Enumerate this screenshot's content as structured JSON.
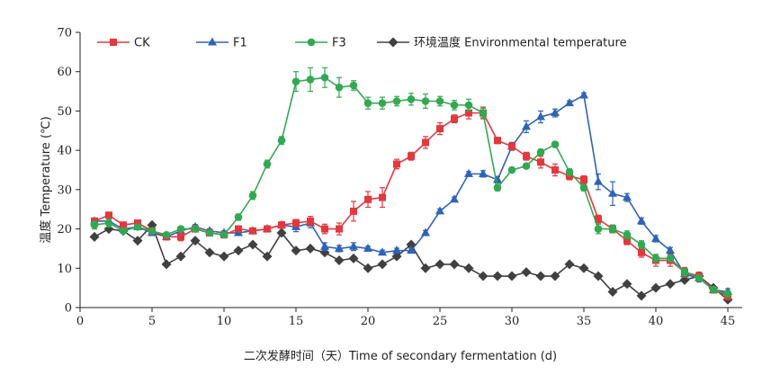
{
  "chart_data": {
    "type": "line",
    "xlabel": "二次发酵时间（天）Time of secondary fermentation (d)",
    "ylabel": "温度 Temperature (℃)",
    "xlim": [
      0,
      46
    ],
    "ylim": [
      0,
      70
    ],
    "xticks": [
      0,
      5,
      10,
      15,
      20,
      25,
      30,
      35,
      40,
      45
    ],
    "yticks": [
      0,
      10,
      20,
      30,
      40,
      50,
      60,
      70
    ],
    "grid": false,
    "legend_position": "top",
    "x": [
      1,
      2,
      3,
      4,
      5,
      6,
      7,
      8,
      9,
      10,
      11,
      12,
      13,
      14,
      15,
      16,
      17,
      18,
      19,
      20,
      21,
      22,
      23,
      24,
      25,
      26,
      27,
      28,
      29,
      30,
      31,
      32,
      33,
      34,
      35,
      36,
      37,
      38,
      39,
      40,
      41,
      42,
      43,
      44,
      45
    ],
    "series": [
      {
        "name": "CK",
        "color": "#e2383f",
        "marker": "square",
        "values": [
          22,
          23.5,
          21,
          21.5,
          19.5,
          18,
          18,
          20,
          19,
          18.5,
          20,
          19.5,
          20,
          21,
          21.5,
          22,
          20,
          20,
          24.5,
          27.5,
          28,
          36.5,
          38.5,
          42,
          45.5,
          48,
          49.5,
          49.5,
          42.5,
          41,
          38.5,
          37,
          35,
          33.5,
          32.5,
          22.5,
          20,
          17,
          14,
          12,
          12,
          9,
          8,
          4.5,
          3
        ],
        "errors": [
          0.5,
          0.6,
          0.5,
          0.6,
          0.5,
          0.8,
          1,
          0.6,
          0.6,
          0.5,
          0.6,
          0.7,
          0.6,
          0.8,
          0.9,
          1.2,
          1.2,
          1.5,
          2.5,
          2,
          2.5,
          1.2,
          1,
          1.5,
          1.5,
          1,
          1.5,
          1.5,
          0.8,
          0.8,
          1,
          1.5,
          1.5,
          1,
          1,
          1,
          1,
          1,
          1.2,
          1.5,
          1.5,
          1.2,
          1,
          0.8,
          1
        ]
      },
      {
        "name": "F1",
        "color": "#2e63b5",
        "marker": "triangle",
        "values": [
          22,
          22,
          20,
          20.5,
          19,
          18,
          19.5,
          20.5,
          19.5,
          19,
          19,
          19.5,
          20,
          21,
          20.5,
          21.5,
          15.5,
          15,
          15.5,
          15,
          14,
          14.5,
          14.5,
          19,
          24.5,
          27.5,
          34,
          34,
          32.5,
          41,
          46,
          48.5,
          49.5,
          52,
          54,
          32,
          29,
          28,
          22,
          17.5,
          14.5,
          8.5,
          7.5,
          4.5,
          4
        ],
        "errors": [
          0.5,
          0.5,
          0.5,
          0.5,
          0.5,
          0.5,
          0.6,
          0.6,
          0.5,
          0.5,
          0.5,
          0.5,
          0.6,
          0.6,
          1.2,
          1.2,
          1,
          0.8,
          1,
          0.6,
          0.6,
          0.6,
          0.6,
          0.6,
          0.6,
          0.6,
          0.6,
          0.8,
          0.8,
          1,
          1.5,
          1.5,
          1,
          0.6,
          0.6,
          2,
          3,
          1,
          0.8,
          0.8,
          0.8,
          0.8,
          1,
          0.8,
          0.8
        ]
      },
      {
        "name": "F3",
        "color": "#33a852",
        "marker": "circle",
        "values": [
          21,
          21.5,
          19.5,
          20.5,
          19.5,
          18.5,
          20,
          20,
          19,
          18.5,
          23,
          28.5,
          36.5,
          42.5,
          57.5,
          58,
          58.5,
          56,
          56.5,
          52,
          52,
          52.5,
          53,
          52.5,
          52.5,
          51.5,
          51.5,
          49.5,
          30.5,
          35,
          36,
          39.5,
          41.5,
          34.5,
          30.5,
          20,
          20,
          18.5,
          16,
          12.5,
          12.5,
          9,
          7.5,
          4.5,
          3.5
        ],
        "errors": [
          1,
          1,
          0.6,
          0.6,
          0.6,
          0.6,
          0.6,
          0.6,
          0.6,
          0.6,
          0.8,
          1,
          1,
          1,
          2.5,
          3,
          2.5,
          2.5,
          1.2,
          1.5,
          1.5,
          1.2,
          1.5,
          1.8,
          1.2,
          1.2,
          1.5,
          1.2,
          0.8,
          0.6,
          0.6,
          0.8,
          0.6,
          0.8,
          0.8,
          1.2,
          1,
          1,
          1,
          1,
          0.8,
          1,
          0.8,
          0.8,
          0.8
        ]
      },
      {
        "name": "环境温度 Environmental temperature",
        "color": "#404040",
        "marker": "diamond",
        "values": [
          18,
          20,
          19.5,
          17,
          21,
          11,
          13,
          17,
          14,
          13,
          14.5,
          16,
          13,
          19,
          14.5,
          15,
          14,
          12,
          12.5,
          10,
          11,
          13,
          16,
          10,
          11,
          11,
          10,
          8,
          8,
          8,
          9,
          8,
          8,
          11,
          10,
          8,
          4,
          6,
          3,
          5,
          6,
          7,
          8,
          5,
          2
        ],
        "errors": []
      }
    ]
  }
}
